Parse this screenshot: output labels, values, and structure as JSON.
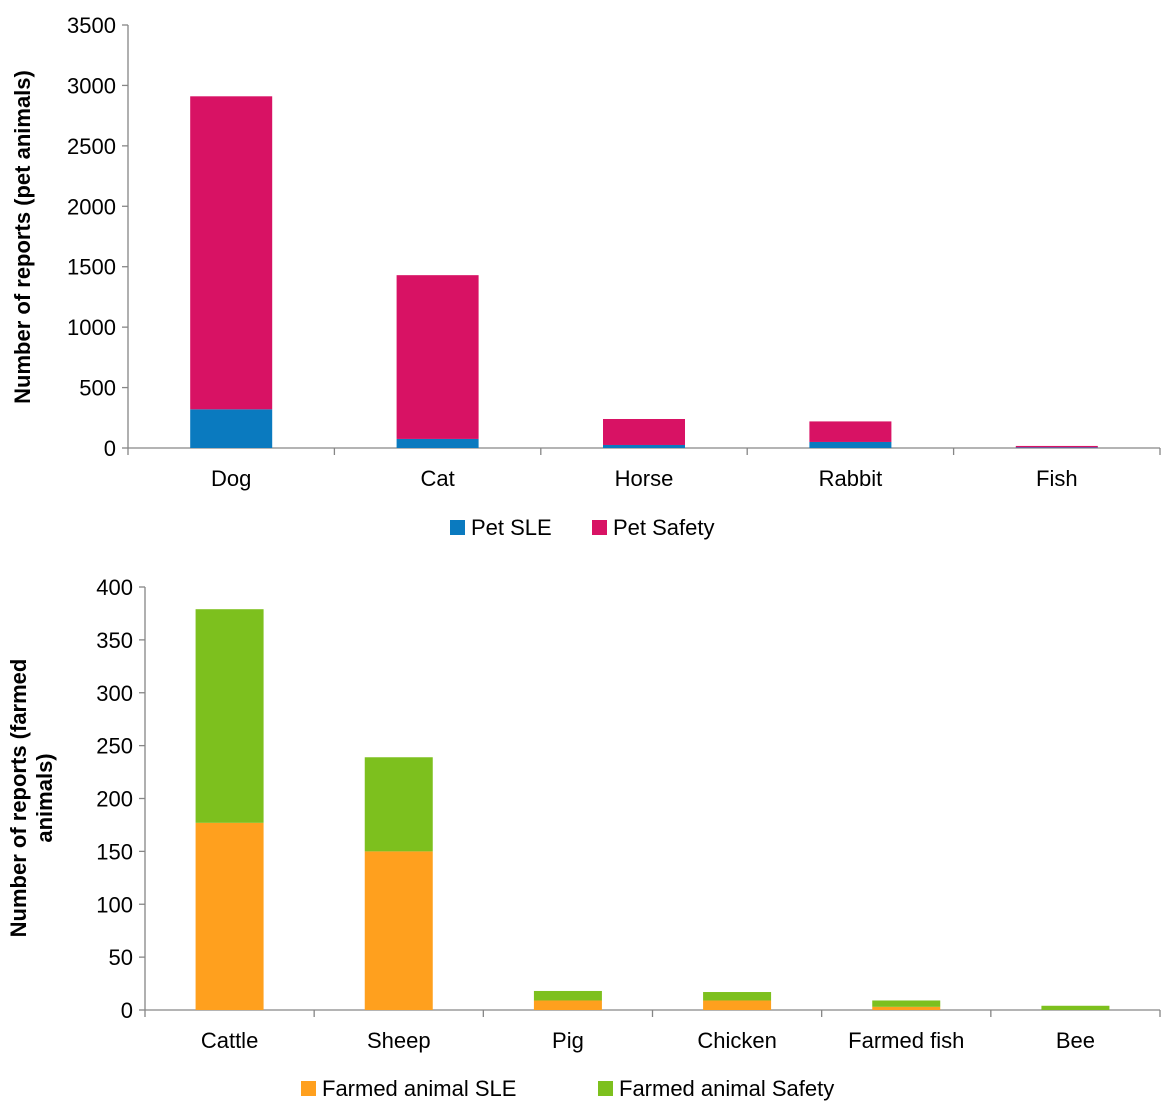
{
  "chart_data": [
    {
      "type": "bar",
      "stacked": true,
      "categories": [
        "Dog",
        "Cat",
        "Horse",
        "Rabbit",
        "Fish"
      ],
      "series": [
        {
          "name": "Pet SLE",
          "color": "#0A7ABF",
          "values": [
            320,
            75,
            25,
            50,
            5
          ]
        },
        {
          "name": "Pet Safety",
          "color": "#D81264",
          "values": [
            2590,
            1355,
            215,
            170,
            12
          ]
        }
      ],
      "ylabel": "Number of reports (pet animals)",
      "ylim": [
        0,
        3500
      ],
      "yticks": [
        "0",
        "500",
        "1000",
        "1500",
        "2000",
        "2500",
        "3000",
        "3500"
      ],
      "grid": false,
      "legend_position": "bottom"
    },
    {
      "type": "bar",
      "stacked": true,
      "categories": [
        "Cattle",
        "Sheep",
        "Pig",
        "Chicken",
        "Farmed fish",
        "Bee"
      ],
      "series": [
        {
          "name": "Farmed animal SLE",
          "color": "#FFA01E",
          "values": [
            177,
            150,
            9,
            9,
            3,
            0
          ]
        },
        {
          "name": "Farmed animal Safety",
          "color": "#7DC01E",
          "values": [
            202,
            89,
            9,
            8,
            6,
            4
          ]
        }
      ],
      "ylabel": "Number of reports (farmed animals)",
      "ylim": [
        0,
        400
      ],
      "yticks": [
        "0",
        "50",
        "100",
        "150",
        "200",
        "250",
        "300",
        "350",
        "400"
      ],
      "grid": false,
      "legend_position": "bottom"
    }
  ]
}
